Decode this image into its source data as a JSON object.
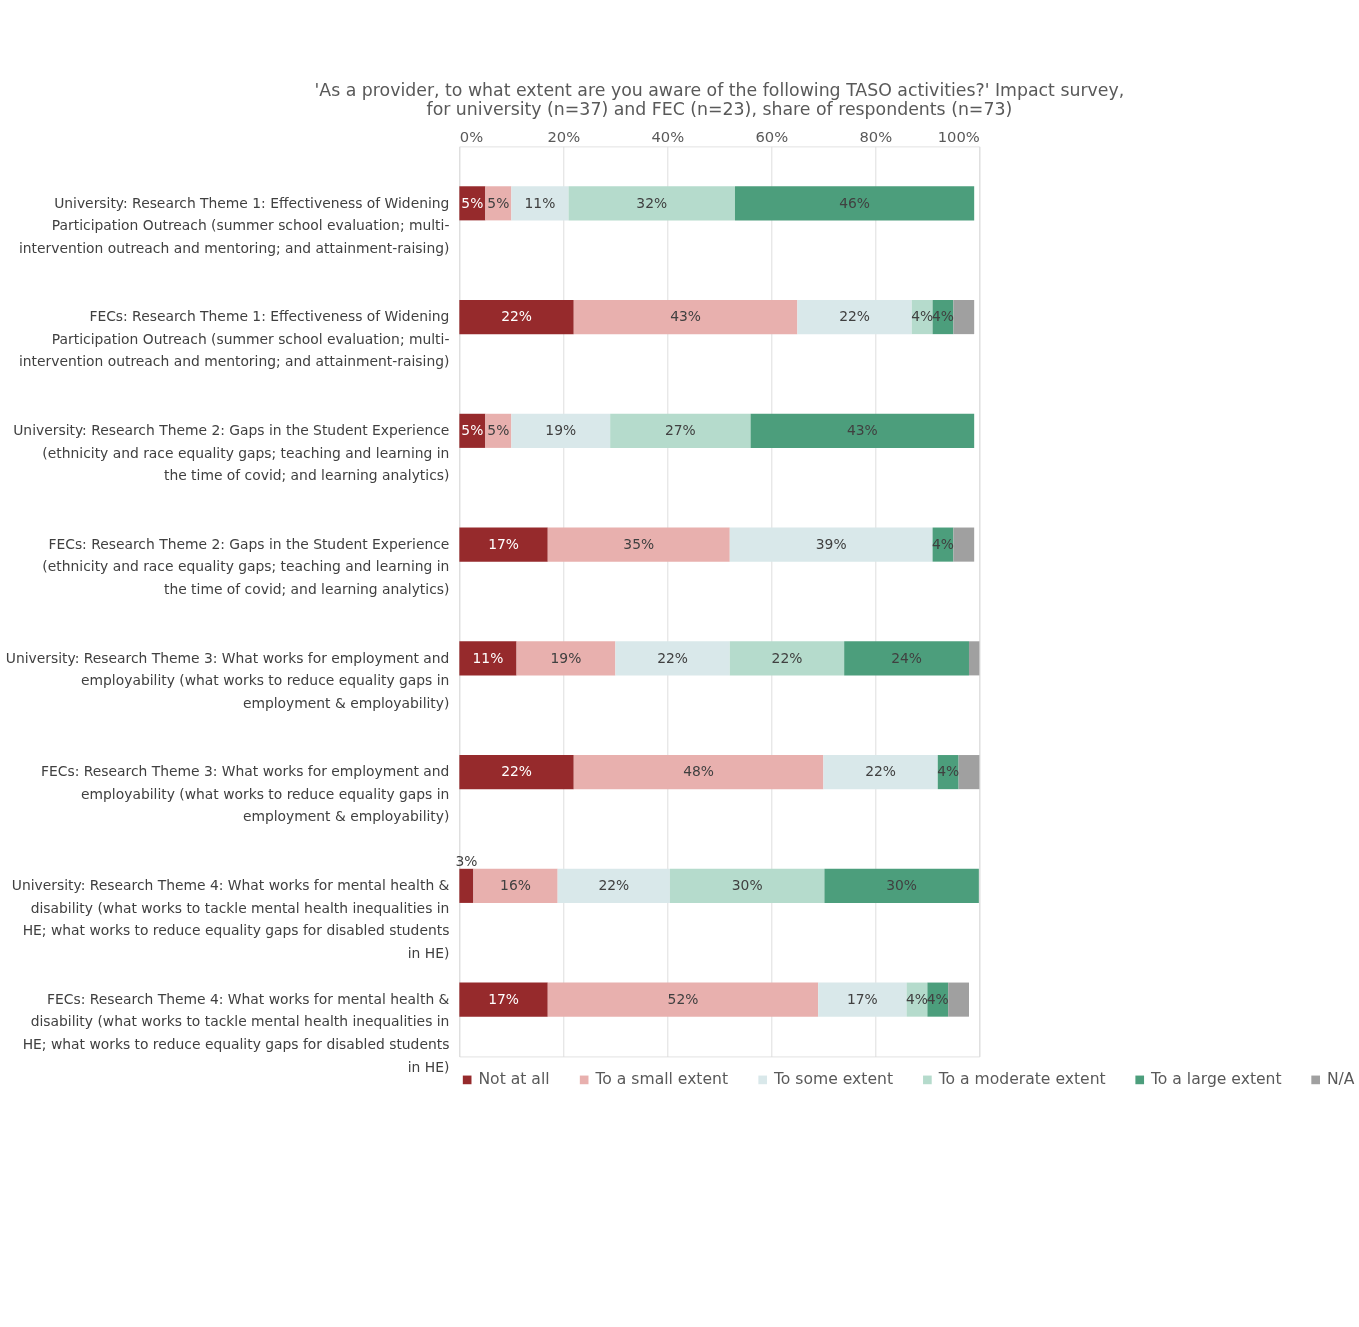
{
  "chart_data": {
    "type": "bar",
    "orientation": "horizontal",
    "stacked": true,
    "title": "'As a provider, to what extent are you aware of the following TASO activities?' Impact survey, for university (n=37) and FEC (n=23), share of respondents (n=73)",
    "categories": [
      "University: Research Theme 1: Effectiveness of Widening Participation Outreach (summer school evaluation; multi-intervention outreach and mentoring; and attainment-raising)",
      "FECs: Research Theme 1: Effectiveness of Widening Participation Outreach (summer school evaluation; multi-intervention outreach and mentoring; and attainment-raising)",
      "University: Research Theme 2: Gaps in the Student Experience (ethnicity and race equality gaps; teaching and learning in the time of covid; and learning analytics)",
      "FECs: Research Theme 2: Gaps in the Student Experience (ethnicity and race equality gaps; teaching and learning in the time of covid; and learning analytics)",
      "University: Research Theme 3: What works for employment and employability (what works to reduce equality gaps in employment & employability)",
      "FECs: Research Theme 3: What works for employment and employability (what works to reduce equality gaps in employment & employability)",
      "University: Research Theme 4: What works for mental health & disability (what works to tackle mental health inequalities in HE; what works to reduce equality gaps for disabled students in HE)",
      "FECs: Research Theme 4: What works for mental health & disability (what works to tackle mental health inequalities in HE; what works to reduce equality gaps for disabled students in HE)"
    ],
    "series": [
      {
        "name": "Not at all",
        "color": "#962a2c",
        "values": [
          5,
          22,
          5,
          17,
          11,
          22,
          2.7,
          17
        ],
        "value_labels": [
          "5%",
          "22%",
          "5%",
          "17%",
          "11%",
          "22%",
          "3%",
          "17%"
        ]
      },
      {
        "name": "To a small extent",
        "color": "#e8b0ae",
        "values": [
          5,
          43,
          5,
          35,
          19,
          48,
          16.2,
          52
        ],
        "value_labels": [
          "5%",
          "43%",
          "5%",
          "35%",
          "19%",
          "48%",
          "16%",
          "52%"
        ]
      },
      {
        "name": "To some extent",
        "color": "#d9e8ea",
        "values": [
          11,
          22,
          19,
          39,
          22,
          22,
          21.6,
          17
        ],
        "value_labels": [
          "11%",
          "22%",
          "19%",
          "39%",
          "22%",
          "22%",
          "22%",
          "17%"
        ]
      },
      {
        "name": "To a moderate extent",
        "color": "#b5dbcc",
        "values": [
          32,
          4,
          27,
          null,
          22,
          null,
          29.7,
          4
        ],
        "value_labels": [
          "32%",
          "4%",
          "27%",
          null,
          "22%",
          null,
          "30%",
          "4%"
        ]
      },
      {
        "name": "To a large extent",
        "color": "#4c9e7c",
        "values": [
          46,
          4,
          43,
          4,
          24,
          4,
          29.7,
          4
        ],
        "value_labels": [
          "46%",
          "4%",
          "43%",
          "4%",
          "24%",
          "4%",
          "30%",
          "4%"
        ]
      },
      {
        "name": "N/A",
        "color": "#a0a0a0",
        "values": [
          null,
          4,
          null,
          4,
          2,
          4,
          null,
          4
        ],
        "value_labels": [
          null,
          null,
          null,
          null,
          null,
          null,
          null,
          null
        ]
      }
    ],
    "xlim": [
      0,
      100
    ],
    "xticks": [
      {
        "value": 0,
        "label": "0%"
      },
      {
        "value": 20,
        "label": "20%"
      },
      {
        "value": 40,
        "label": "40%"
      },
      {
        "value": 60,
        "label": "60%"
      },
      {
        "value": 80,
        "label": "80%"
      },
      {
        "value": 100,
        "label": "100%"
      }
    ],
    "grid": "x",
    "legend": "bottom"
  }
}
